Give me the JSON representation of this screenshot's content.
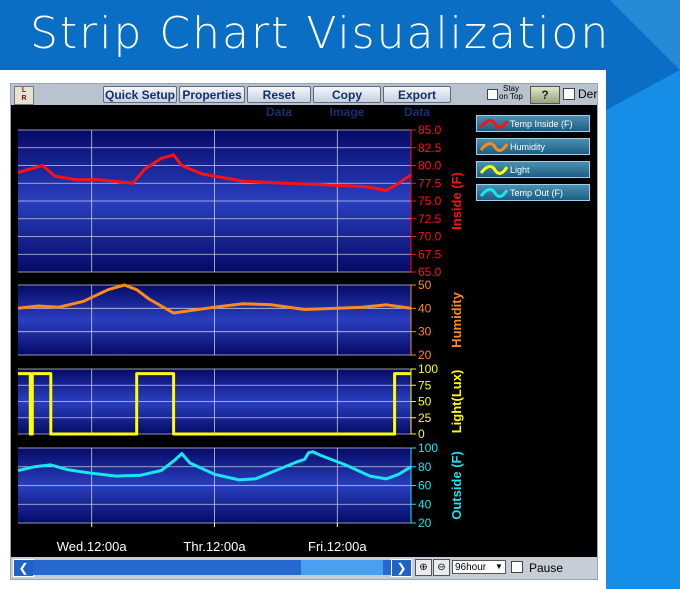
{
  "page": {
    "title": "Strip Chart Visualization"
  },
  "toolbar": {
    "logo_top": "L",
    "logo_bottom": "R",
    "buttons": [
      "Quick Setup",
      "Properties",
      "Reset Data",
      "Copy Image",
      "Export Data"
    ],
    "stay_on_top_line1": "Stay",
    "stay_on_top_line2": "on Top",
    "help_label": "?",
    "demo_label": "Der"
  },
  "legend": [
    {
      "label": "Temp Inside (F)",
      "color": "#ff1010"
    },
    {
      "label": "Humidity",
      "color": "#ff8a1c"
    },
    {
      "label": "Light",
      "color": "#ffff00"
    },
    {
      "label": "Temp Out (F)",
      "color": "#19e6f0"
    }
  ],
  "scrollbar": {
    "left_icon": "chevron-left-icon",
    "right_icon": "chevron-right-icon",
    "zoom_in_icon": "zoom-in-icon",
    "zoom_out_icon": "zoom-out-icon",
    "time_span": "96hour",
    "pause_label": "Pause"
  },
  "chart_data": {
    "type": "line",
    "x_range": [
      0,
      96
    ],
    "x_unit": "hours",
    "x_ticks": [
      {
        "x": 18,
        "label": "Wed.12:00a"
      },
      {
        "x": 48,
        "label": "Thr.12:00a"
      },
      {
        "x": 78,
        "label": "Fri.12:00a"
      }
    ],
    "grid": true,
    "legend_position": "top-right",
    "panels": [
      {
        "name": "Temp Inside (F)",
        "ylabel": "Inside (F)",
        "color": "#ff1010",
        "ylim": [
          65.0,
          85.0
        ],
        "ticks": [
          "85.0",
          "82.5",
          "80.0",
          "77.5",
          "75.0",
          "72.5",
          "70.0",
          "67.5",
          "65.0"
        ],
        "tick_values": [
          85,
          82.5,
          80,
          77.5,
          75,
          72.5,
          70,
          67.5,
          65
        ],
        "points": [
          [
            0,
            79
          ],
          [
            3,
            79.5
          ],
          [
            6,
            80
          ],
          [
            9,
            78.5
          ],
          [
            14,
            78
          ],
          [
            20,
            78
          ],
          [
            28,
            77.5
          ],
          [
            31,
            79.5
          ],
          [
            35,
            81
          ],
          [
            38,
            81.5
          ],
          [
            40,
            80
          ],
          [
            45,
            78.8
          ],
          [
            55,
            77.8
          ],
          [
            65,
            77.5
          ],
          [
            75,
            77.3
          ],
          [
            85,
            77
          ],
          [
            90,
            76.5
          ],
          [
            93,
            77.5
          ],
          [
            96,
            78.7
          ]
        ]
      },
      {
        "name": "Humidity",
        "ylabel": "Humidity",
        "color": "#ff8a1c",
        "ylim": [
          20,
          50
        ],
        "ticks": [
          "50",
          "40",
          "30",
          "20"
        ],
        "tick_values": [
          50,
          40,
          30,
          20
        ],
        "points": [
          [
            0,
            40
          ],
          [
            5,
            41
          ],
          [
            10,
            40.5
          ],
          [
            16,
            43
          ],
          [
            22,
            48
          ],
          [
            26,
            50
          ],
          [
            29,
            48
          ],
          [
            32,
            44
          ],
          [
            35,
            41
          ],
          [
            38,
            38
          ],
          [
            42,
            39
          ],
          [
            48,
            40.5
          ],
          [
            55,
            42
          ],
          [
            62,
            41.5
          ],
          [
            70,
            39.5
          ],
          [
            78,
            40
          ],
          [
            84,
            40.5
          ],
          [
            90,
            41.5
          ],
          [
            96,
            40
          ]
        ]
      },
      {
        "name": "Light",
        "ylabel": "Light(Lux)",
        "color": "#ffff00",
        "ylim": [
          0,
          100
        ],
        "ticks": [
          "100",
          "75",
          "50",
          "25",
          "0"
        ],
        "tick_values": [
          100,
          75,
          50,
          25,
          0
        ],
        "points": [
          [
            0,
            93
          ],
          [
            3,
            93
          ],
          [
            3,
            0
          ],
          [
            3.5,
            0
          ],
          [
            3.5,
            93
          ],
          [
            8,
            93
          ],
          [
            8,
            0
          ],
          [
            29,
            0
          ],
          [
            29,
            93
          ],
          [
            38,
            93
          ],
          [
            38,
            0
          ],
          [
            92,
            0
          ],
          [
            92,
            93
          ],
          [
            96,
            93
          ]
        ]
      },
      {
        "name": "Temp Out (F)",
        "ylabel": "Outside (F)",
        "color": "#19e6f0",
        "ylim": [
          20,
          100
        ],
        "ticks": [
          "100",
          "80",
          "60",
          "40",
          "20"
        ],
        "tick_values": [
          100,
          80,
          60,
          40,
          20
        ],
        "points": [
          [
            0,
            76
          ],
          [
            4,
            80
          ],
          [
            8,
            82
          ],
          [
            12,
            77
          ],
          [
            18,
            73
          ],
          [
            24,
            70
          ],
          [
            30,
            71
          ],
          [
            35,
            76
          ],
          [
            38,
            86
          ],
          [
            40,
            94
          ],
          [
            42,
            84
          ],
          [
            48,
            72
          ],
          [
            54,
            66
          ],
          [
            58,
            67
          ],
          [
            63,
            76
          ],
          [
            68,
            85
          ],
          [
            70,
            88
          ],
          [
            71,
            95
          ],
          [
            72,
            96
          ],
          [
            74,
            92
          ],
          [
            80,
            82
          ],
          [
            86,
            70
          ],
          [
            90,
            67
          ],
          [
            93,
            72
          ],
          [
            96,
            80
          ]
        ]
      }
    ]
  }
}
